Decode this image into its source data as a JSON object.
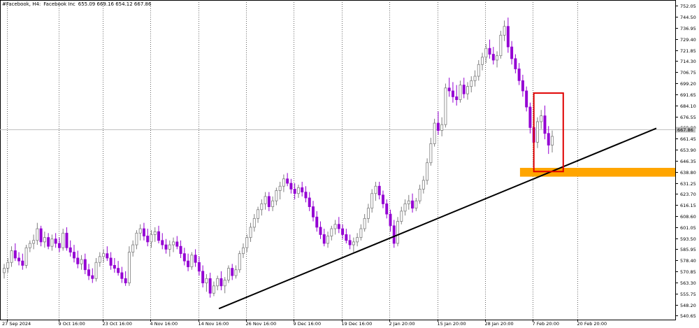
{
  "header": {
    "symbol": "#Facebook, H4:",
    "name": "Facebook Inc",
    "ohlc": "655.09 669.16 654.12 667.86"
  },
  "colors": {
    "bull_body": "#ffffff",
    "bull_wick": "#7f7f7f",
    "bear_body": "#9400d3",
    "bear_wick": "#9400d3",
    "grid": "#000000",
    "trendline": "#000000",
    "zone": "#ffa500",
    "box": "#e00000",
    "price_tag": "#c0c0c0"
  },
  "chart_data": {
    "type": "candlestick",
    "symbol": "#Facebook",
    "timeframe": "H4",
    "ylim": [
      538.0,
      756.0
    ],
    "y_ticks": [
      540.65,
      548.2,
      555.75,
      563.3,
      570.85,
      578.4,
      585.95,
      593.5,
      601.05,
      608.6,
      616.15,
      623.7,
      631.25,
      638.8,
      646.35,
      653.9,
      661.45,
      669.0,
      676.55,
      684.1,
      691.65,
      699.2,
      706.75,
      714.3,
      721.85,
      729.4,
      736.95,
      744.5,
      752.05
    ],
    "current_price": 667.86,
    "current_price_label": "667.86",
    "x_labels": [
      "27 Sep 2024",
      "9 Oct 16:00",
      "23 Oct 16:00",
      "4 Nov 16:00",
      "14 Nov 16:00",
      "26 Nov 16:00",
      "9 Dec 16:00",
      "19 Dec 16:00",
      "2 Jan 20:00",
      "15 Jan 20:00",
      "28 Jan 20:00",
      "7 Feb 20:00",
      "20 Feb 20:00"
    ],
    "candles": [
      [
        570,
        576,
        566,
        573
      ],
      [
        573,
        580,
        570,
        577
      ],
      [
        577,
        588,
        574,
        585
      ],
      [
        585,
        590,
        578,
        580
      ],
      [
        580,
        584,
        575,
        578
      ],
      [
        578,
        583,
        572,
        575
      ],
      [
        575,
        589,
        573,
        587
      ],
      [
        587,
        592,
        584,
        590
      ],
      [
        590,
        596,
        586,
        592
      ],
      [
        592,
        604,
        589,
        600
      ],
      [
        600,
        602,
        588,
        591
      ],
      [
        591,
        598,
        587,
        594
      ],
      [
        594,
        597,
        586,
        588
      ],
      [
        588,
        596,
        585,
        593
      ],
      [
        593,
        597,
        587,
        590
      ],
      [
        590,
        594,
        584,
        587
      ],
      [
        587,
        600,
        585,
        597
      ],
      [
        597,
        601,
        585,
        587
      ],
      [
        587,
        592,
        581,
        584
      ],
      [
        584,
        589,
        577,
        580
      ],
      [
        580,
        585,
        573,
        576
      ],
      [
        576,
        582,
        572,
        579
      ],
      [
        579,
        583,
        569,
        572
      ],
      [
        572,
        576,
        565,
        568
      ],
      [
        568,
        573,
        563,
        566
      ],
      [
        566,
        580,
        564,
        577
      ],
      [
        577,
        584,
        574,
        581
      ],
      [
        581,
        586,
        577,
        583
      ],
      [
        583,
        588,
        578,
        580
      ],
      [
        580,
        584,
        572,
        575
      ],
      [
        575,
        580,
        570,
        573
      ],
      [
        573,
        578,
        568,
        570
      ],
      [
        570,
        574,
        563,
        566
      ],
      [
        566,
        571,
        561,
        563
      ],
      [
        563,
        588,
        561,
        584
      ],
      [
        584,
        592,
        581,
        589
      ],
      [
        589,
        599,
        586,
        597
      ],
      [
        597,
        603,
        592,
        600
      ],
      [
        600,
        604,
        592,
        595
      ],
      [
        595,
        600,
        588,
        591
      ],
      [
        591,
        599,
        587,
        596
      ],
      [
        596,
        601,
        591,
        598
      ],
      [
        598,
        602,
        590,
        592
      ],
      [
        592,
        597,
        586,
        589
      ],
      [
        589,
        593,
        583,
        586
      ],
      [
        586,
        592,
        581,
        589
      ],
      [
        589,
        594,
        584,
        591
      ],
      [
        591,
        595,
        586,
        588
      ],
      [
        588,
        592,
        580,
        583
      ],
      [
        583,
        587,
        575,
        578
      ],
      [
        578,
        583,
        571,
        574
      ],
      [
        574,
        584,
        572,
        582
      ],
      [
        582,
        586,
        574,
        577
      ],
      [
        577,
        581,
        568,
        571
      ],
      [
        571,
        575,
        560,
        563
      ],
      [
        563,
        569,
        557,
        566
      ],
      [
        566,
        570,
        553,
        556
      ],
      [
        556,
        564,
        554,
        561
      ],
      [
        561,
        568,
        558,
        566
      ],
      [
        566,
        571,
        558,
        561
      ],
      [
        561,
        567,
        556,
        565
      ],
      [
        565,
        575,
        563,
        573
      ],
      [
        573,
        576,
        565,
        568
      ],
      [
        568,
        575,
        566,
        572
      ],
      [
        572,
        585,
        570,
        583
      ],
      [
        583,
        590,
        580,
        587
      ],
      [
        587,
        596,
        584,
        594
      ],
      [
        594,
        604,
        591,
        601
      ],
      [
        601,
        610,
        598,
        607
      ],
      [
        607,
        615,
        604,
        613
      ],
      [
        613,
        620,
        609,
        617
      ],
      [
        617,
        625,
        613,
        622
      ],
      [
        622,
        625,
        612,
        615
      ],
      [
        615,
        622,
        612,
        619
      ],
      [
        619,
        628,
        616,
        626
      ],
      [
        626,
        632,
        620,
        629
      ],
      [
        629,
        637,
        625,
        634
      ],
      [
        634,
        638,
        629,
        631
      ],
      [
        631,
        634,
        624,
        627
      ],
      [
        627,
        631,
        620,
        624
      ],
      [
        624,
        630,
        621,
        628
      ],
      [
        628,
        632,
        622,
        625
      ],
      [
        625,
        629,
        618,
        621
      ],
      [
        621,
        625,
        612,
        615
      ],
      [
        615,
        619,
        605,
        608
      ],
      [
        608,
        612,
        598,
        601
      ],
      [
        601,
        605,
        593,
        596
      ],
      [
        596,
        600,
        588,
        590
      ],
      [
        590,
        598,
        587,
        595
      ],
      [
        595,
        602,
        592,
        600
      ],
      [
        600,
        606,
        596,
        603
      ],
      [
        603,
        608,
        597,
        600
      ],
      [
        600,
        603,
        593,
        596
      ],
      [
        596,
        600,
        590,
        592
      ],
      [
        592,
        596,
        586,
        589
      ],
      [
        589,
        594,
        584,
        591
      ],
      [
        591,
        597,
        588,
        594
      ],
      [
        594,
        603,
        592,
        600
      ],
      [
        600,
        610,
        598,
        607
      ],
      [
        607,
        617,
        604,
        614
      ],
      [
        614,
        627,
        611,
        624
      ],
      [
        624,
        632,
        619,
        629
      ],
      [
        629,
        632,
        620,
        623
      ],
      [
        623,
        626,
        614,
        617
      ],
      [
        617,
        620,
        607,
        610
      ],
      [
        610,
        613,
        598,
        602
      ],
      [
        602,
        606,
        587,
        590
      ],
      [
        590,
        608,
        588,
        605
      ],
      [
        605,
        615,
        603,
        612
      ],
      [
        612,
        620,
        609,
        617
      ],
      [
        617,
        623,
        613,
        619
      ],
      [
        619,
        624,
        611,
        614
      ],
      [
        614,
        621,
        612,
        619
      ],
      [
        619,
        630,
        617,
        627
      ],
      [
        627,
        636,
        624,
        633
      ],
      [
        633,
        648,
        630,
        645
      ],
      [
        645,
        662,
        643,
        658
      ],
      [
        658,
        675,
        656,
        672
      ],
      [
        672,
        680,
        664,
        667
      ],
      [
        667,
        676,
        663,
        671
      ],
      [
        671,
        699,
        669,
        696
      ],
      [
        696,
        703,
        690,
        694
      ],
      [
        694,
        700,
        686,
        690
      ],
      [
        690,
        698,
        684,
        688
      ],
      [
        688,
        701,
        686,
        698
      ],
      [
        698,
        703,
        689,
        692
      ],
      [
        692,
        700,
        688,
        697
      ],
      [
        697,
        704,
        693,
        701
      ],
      [
        701,
        708,
        697,
        704
      ],
      [
        704,
        715,
        701,
        712
      ],
      [
        712,
        720,
        708,
        717
      ],
      [
        717,
        726,
        713,
        723
      ],
      [
        723,
        729,
        716,
        719
      ],
      [
        719,
        724,
        712,
        715
      ],
      [
        715,
        721,
        710,
        718
      ],
      [
        718,
        735,
        716,
        732
      ],
      [
        732,
        742,
        728,
        738
      ],
      [
        738,
        744,
        720,
        724
      ],
      [
        724,
        728,
        712,
        716
      ],
      [
        716,
        719,
        706,
        709
      ],
      [
        709,
        713,
        698,
        701
      ],
      [
        701,
        705,
        690,
        694
      ],
      [
        694,
        697,
        680,
        683
      ],
      [
        683,
        686,
        665,
        669
      ],
      [
        669,
        674,
        655,
        659
      ],
      [
        659,
        676,
        655,
        673
      ],
      [
        673,
        681,
        668,
        677
      ],
      [
        677,
        684,
        661,
        665
      ],
      [
        665,
        670,
        651,
        657
      ],
      [
        657,
        667,
        652,
        663
      ]
    ]
  }
}
